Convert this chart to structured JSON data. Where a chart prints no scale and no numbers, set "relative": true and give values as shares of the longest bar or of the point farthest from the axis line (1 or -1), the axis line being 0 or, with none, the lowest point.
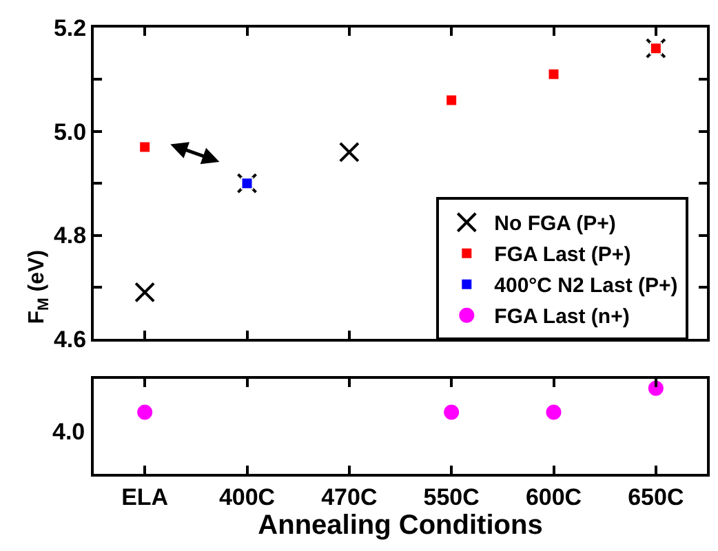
{
  "chart_data": [
    {
      "type": "scatter",
      "ylabel": "F$_{M}$ (eV)",
      "categories": [
        "ELA",
        "400C",
        "470C",
        "550C",
        "600C",
        "650C"
      ],
      "series": [
        {
          "name": "No FGA (P+)",
          "color": "#000000",
          "marker": "cross",
          "values": [
            4.69,
            4.9,
            4.96,
            null,
            null,
            5.16
          ]
        },
        {
          "name": "FGA Last (P+)",
          "color": "#ff0000",
          "marker": "square",
          "values": [
            4.97,
            null,
            null,
            5.06,
            5.11,
            5.16
          ]
        },
        {
          "name": "400°C N2 Last (P+)",
          "color": "#0000ff",
          "marker": "square",
          "values": [
            null,
            4.9,
            null,
            null,
            null,
            null
          ]
        }
      ],
      "ylim": [
        4.6,
        5.2
      ],
      "yticks": [
        4.6,
        {
          "value": 4.7,
          "label": null
        },
        4.8,
        {
          "value": 4.9,
          "label": null
        },
        {
          "value": 5.0,
          "label": "5.0"
        },
        {
          "value": 5.1,
          "label": null
        },
        5.2
      ],
      "tick_labels": "y",
      "legend": "right"
    },
    {
      "type": "scatter",
      "xlabel": "Annealing Conditions",
      "categories": [
        "ELA",
        "400C",
        "470C",
        "550C",
        "600C",
        "650C"
      ],
      "series": [
        {
          "name": "FGA Last (n+)",
          "color": "#ff00ff",
          "marker": "circle",
          "values": [
            0.72,
            null,
            null,
            0.72,
            0.72,
            1
          ]
        }
      ],
      "relative": true,
      "annotations": [
        "4.0"
      ],
      "legend": "right"
    }
  ]
}
